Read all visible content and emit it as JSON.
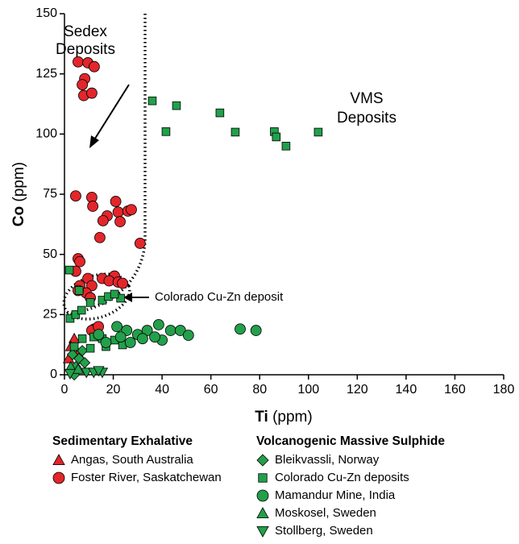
{
  "chart_data": {
    "type": "scatter",
    "xlabel_bold": "Ti",
    "xlabel": "(ppm)",
    "ylabel_bold": "Co",
    "ylabel": "(ppm)",
    "xlim": [
      0,
      180
    ],
    "xticks": [
      0,
      20,
      40,
      60,
      80,
      100,
      120,
      140,
      160,
      180
    ],
    "ylim": [
      0,
      150
    ],
    "yticks": [
      0,
      25,
      50,
      75,
      100,
      125,
      150
    ],
    "annotations": [
      {
        "lines": [
          "Sedex",
          "Deposits"
        ]
      },
      {
        "lines": [
          "VMS",
          "Deposits"
        ]
      },
      {
        "lines": [
          "Colorado Cu-Zn deposit"
        ]
      }
    ],
    "groups": [
      "Sedimentary Exhalative",
      "Volcanogenic Massive Sulphide"
    ],
    "series": [
      {
        "name": "Angas, South Australia",
        "group": 0,
        "marker": "triangle",
        "color": "#e3262b",
        "x": [
          4,
          1.7,
          2.6,
          5.6
        ],
        "y": [
          15,
          6.7,
          11.7,
          9
        ]
      },
      {
        "name": "Foster River, Saskatchewan",
        "group": 0,
        "marker": "circle",
        "color": "#e3262b",
        "x": [
          5.6,
          9.6,
          12.2,
          8.3,
          7.3,
          7.9,
          11.2,
          4.6,
          11.2,
          11.6,
          21,
          17.5,
          15.8,
          22,
          26,
          27.4,
          22.8,
          14.5,
          31,
          5.6,
          6.3,
          4.6,
          9.6,
          15.5,
          20.5,
          18.3,
          22,
          23.8,
          6.3,
          11.2,
          8.9,
          5.6,
          10.6,
          12.2,
          11.2,
          13.9
        ],
        "y": [
          130,
          129.6,
          128,
          123,
          120.5,
          116,
          117,
          74.3,
          73.7,
          70,
          72,
          66,
          64,
          67.6,
          68,
          68.6,
          63.6,
          57,
          54.6,
          48.2,
          47,
          43,
          40,
          40,
          41,
          39,
          38.5,
          38,
          37,
          37,
          34,
          35,
          32,
          19,
          18.4,
          20
        ]
      },
      {
        "name": "Bleikvassli, Norway",
        "group": 1,
        "marker": "diamond",
        "color": "#22a04b",
        "x": [
          3.3,
          6,
          8.3,
          4,
          4.6,
          7.3
        ],
        "y": [
          8.4,
          6.7,
          5,
          0,
          3.3,
          10
        ]
      },
      {
        "name": "Colorado Cu-Zn deposits",
        "group": 1,
        "marker": "square",
        "color": "#22a04b",
        "x": [
          36,
          45.9,
          41.6,
          63.7,
          70,
          86,
          86.8,
          90.8,
          104,
          2,
          2.3,
          4.6,
          7,
          10.6,
          15.5,
          18,
          23,
          20.5,
          7.3,
          12,
          15.5,
          20.5,
          4,
          10.6,
          17,
          23.8,
          6
        ],
        "y": [
          113.8,
          111.8,
          101,
          108.8,
          100.8,
          101,
          98.8,
          95,
          100.8,
          43.5,
          23.4,
          25,
          26.8,
          30,
          31,
          32.5,
          31.8,
          33.5,
          15,
          15.7,
          15,
          14.4,
          11.7,
          11,
          11.7,
          12.4,
          35
        ]
      },
      {
        "name": "Mamandur Mine, India",
        "group": 1,
        "marker": "circle",
        "color": "#22a04b",
        "x": [
          21.5,
          25.5,
          30,
          33.9,
          38.6,
          43.5,
          47.5,
          50.8,
          40,
          32,
          27,
          17,
          23,
          72,
          78.5,
          14,
          37
        ],
        "y": [
          20,
          18.4,
          16.7,
          18.4,
          20.8,
          18.4,
          18.4,
          16.4,
          14.4,
          15,
          13.4,
          13.4,
          15.7,
          19,
          18.4,
          16.7,
          15.7
        ]
      },
      {
        "name": "Moskosel, Sweden",
        "group": 1,
        "marker": "triangle",
        "color": "#22a04b",
        "x": [
          2.6,
          5.6
        ],
        "y": [
          3.3,
          2.3
        ]
      },
      {
        "name": "Stollberg, Sweden",
        "group": 1,
        "marker": "triangle-down",
        "color": "#22a04b",
        "x": [
          2.3,
          9,
          12,
          15.5,
          14
        ],
        "y": [
          0.5,
          1,
          1,
          1,
          1.7
        ]
      }
    ]
  }
}
